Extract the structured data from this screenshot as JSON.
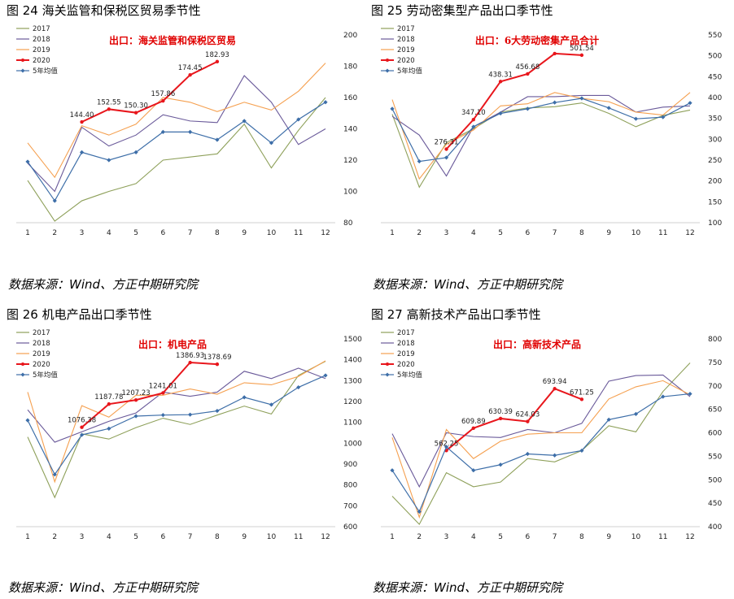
{
  "colors": {
    "s2017": "#8ea05a",
    "s2018": "#6a5a9a",
    "s2019": "#f5a050",
    "s2020": "#e8161c",
    "avg": "#3d6ea8",
    "title": "#e00000"
  },
  "source_text": "数据来源：Wind、方正中期研究院",
  "chart_data": [
    {
      "type": "line",
      "figure_title": "图 24   海关监管和保税区贸易季节性",
      "title": "出口：海关监管和保税区贸易",
      "x": [
        1,
        2,
        3,
        4,
        5,
        6,
        7,
        8,
        9,
        10,
        11,
        12
      ],
      "ylim": [
        80,
        200
      ],
      "yticks": [
        80,
        100,
        120,
        140,
        160,
        180,
        200
      ],
      "series": [
        {
          "name": "2017",
          "key": "s2017",
          "values": [
            107,
            81,
            94,
            100,
            105,
            120,
            122,
            124,
            143,
            115,
            139,
            160
          ]
        },
        {
          "name": "2018",
          "key": "s2018",
          "values": [
            118,
            100,
            141,
            129,
            136,
            149,
            145,
            144,
            174,
            157,
            130,
            140
          ]
        },
        {
          "name": "2019",
          "key": "s2019",
          "values": [
            131,
            109,
            142,
            136,
            143,
            160,
            157,
            151,
            157,
            152,
            164,
            182
          ]
        },
        {
          "name": "2020",
          "key": "s2020",
          "values": [
            null,
            null,
            144.4,
            152.55,
            150.3,
            157.86,
            174.45,
            182.93,
            null,
            null,
            null,
            null
          ],
          "labels": [
            "",
            "",
            "144.40",
            "152.55",
            "150.30",
            "157.86",
            "174.45",
            "182.93",
            "",
            "",
            "",
            ""
          ]
        },
        {
          "name": "5年均值",
          "key": "avg",
          "values": [
            119,
            94,
            125,
            120,
            125,
            138,
            138,
            133,
            145,
            131,
            146,
            157
          ]
        }
      ]
    },
    {
      "type": "line",
      "figure_title": "图 25   劳动密集型产品出口季节性",
      "title": "出口：6大劳动密集产品合计",
      "x": [
        1,
        2,
        3,
        4,
        5,
        6,
        7,
        8,
        9,
        10,
        11,
        12
      ],
      "ylim": [
        100,
        550
      ],
      "yticks": [
        100,
        150,
        200,
        250,
        300,
        350,
        400,
        450,
        500,
        550
      ],
      "series": [
        {
          "name": "2017",
          "key": "s2017",
          "values": [
            360,
            185,
            292,
            325,
            365,
            375,
            378,
            387,
            362,
            330,
            357,
            370
          ]
        },
        {
          "name": "2018",
          "key": "s2018",
          "values": [
            355,
            310,
            212,
            330,
            365,
            402,
            402,
            405,
            405,
            365,
            377,
            380
          ]
        },
        {
          "name": "2019",
          "key": "s2019",
          "values": [
            395,
            205,
            288,
            322,
            380,
            385,
            412,
            398,
            390,
            365,
            358,
            412
          ]
        },
        {
          "name": "2020",
          "key": "s2020",
          "values": [
            null,
            null,
            276.31,
            347.1,
            438.31,
            456.68,
            505.4,
            501.54,
            null,
            null,
            null,
            null
          ],
          "labels": [
            "",
            "",
            "276.31",
            "347.10",
            "438.31",
            "456.68",
            "",
            "501.54",
            "",
            "",
            "",
            ""
          ]
        },
        {
          "name": "5年均值",
          "key": "avg",
          "values": [
            373,
            247,
            256,
            330,
            362,
            373,
            388,
            398,
            375,
            349,
            353,
            387
          ]
        }
      ]
    },
    {
      "type": "line",
      "figure_title": "图 26   机电产品出口季节性",
      "title": "出口：机电产品",
      "x": [
        1,
        2,
        3,
        4,
        5,
        6,
        7,
        8,
        9,
        10,
        11,
        12
      ],
      "ylim": [
        600,
        1500
      ],
      "yticks": [
        600,
        700,
        800,
        900,
        1000,
        1100,
        1200,
        1300,
        1400,
        1500
      ],
      "series": [
        {
          "name": "2017",
          "key": "s2017",
          "values": [
            1030,
            740,
            1045,
            1020,
            1075,
            1120,
            1090,
            1135,
            1178,
            1140,
            1325,
            1393
          ]
        },
        {
          "name": "2018",
          "key": "s2018",
          "values": [
            1160,
            1005,
            1055,
            1105,
            1145,
            1245,
            1225,
            1245,
            1345,
            1310,
            1360,
            1310
          ]
        },
        {
          "name": "2019",
          "key": "s2019",
          "values": [
            1245,
            815,
            1180,
            1125,
            1230,
            1230,
            1260,
            1235,
            1290,
            1280,
            1320,
            1395
          ]
        },
        {
          "name": "2020",
          "key": "s2020",
          "values": [
            null,
            null,
            1076.38,
            1187.78,
            1207.23,
            1241.01,
            1386.93,
            1378.69,
            null,
            null,
            null,
            null
          ],
          "labels": [
            "",
            "",
            "1076.38",
            "1187.78",
            "1207.23",
            "1241.01",
            "1386.93",
            "1378.69",
            "",
            "",
            "",
            ""
          ]
        },
        {
          "name": "5年均值",
          "key": "avg",
          "values": [
            1110,
            850,
            1040,
            1070,
            1130,
            1135,
            1137,
            1155,
            1220,
            1185,
            1268,
            1325
          ]
        }
      ]
    },
    {
      "type": "line",
      "figure_title": "图 27   高新技术产品出口季节性",
      "title": "出口：高新技术产品",
      "x": [
        1,
        2,
        3,
        4,
        5,
        6,
        7,
        8,
        9,
        10,
        11,
        12
      ],
      "ylim": [
        400,
        800
      ],
      "yticks": [
        400,
        450,
        500,
        550,
        600,
        650,
        700,
        750,
        800
      ],
      "series": [
        {
          "name": "2017",
          "key": "s2017",
          "values": [
            465,
            405,
            515,
            485,
            495,
            545,
            538,
            562,
            615,
            602,
            688,
            749
          ]
        },
        {
          "name": "2018",
          "key": "s2018",
          "values": [
            598,
            485,
            600,
            592,
            590,
            607,
            600,
            620,
            710,
            722,
            723,
            677
          ]
        },
        {
          "name": "2019",
          "key": "s2019",
          "values": [
            590,
            420,
            607,
            545,
            582,
            597,
            600,
            600,
            672,
            698,
            711,
            681
          ]
        },
        {
          "name": "2020",
          "key": "s2020",
          "values": [
            null,
            null,
            562.25,
            609.89,
            630.39,
            624.03,
            693.94,
            671.25,
            null,
            null,
            null,
            null
          ],
          "labels": [
            "",
            "",
            "562.25",
            "609.89",
            "630.39",
            "624.03",
            "693.94",
            "671.25",
            "",
            "",
            "",
            ""
          ]
        },
        {
          "name": "5年均值",
          "key": "avg",
          "values": [
            520,
            432,
            570,
            520,
            532,
            555,
            552,
            562,
            628,
            640,
            677,
            683
          ]
        }
      ]
    }
  ]
}
